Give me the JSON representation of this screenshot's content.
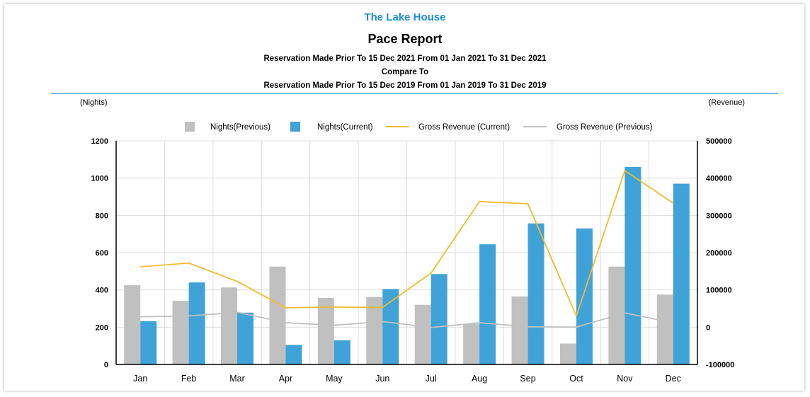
{
  "report": {
    "company": "The Lake House",
    "title": "Pace Report",
    "line1": "Reservation Made Prior To 15 Dec 2021 From 01 Jan 2021 To 31 Dec 2021",
    "line2": "Compare To",
    "line3": "Reservation Made Prior To 15 Dec 2019 From 01 Jan 2019 To 31 Dec 2019"
  },
  "chart_data": {
    "type": "bar",
    "categories": [
      "Jan",
      "Feb",
      "Mar",
      "Apr",
      "May",
      "Jun",
      "Jul",
      "Aug",
      "Sep",
      "Oct",
      "Nov",
      "Dec"
    ],
    "y_left": {
      "label": "(Nights)",
      "range": [
        0,
        1200
      ],
      "ticks": [
        "0",
        "200",
        "400",
        "600",
        "800",
        "1000",
        "1200"
      ]
    },
    "y_right": {
      "label": "(Revenue)",
      "range": [
        -100000,
        500000
      ],
      "ticks": [
        "-100000",
        "0",
        "100000",
        "200000",
        "300000",
        "400000",
        "500000"
      ]
    },
    "legend_position": "top",
    "grid": true,
    "series": [
      {
        "name": "Nights(Previous)",
        "type": "bar",
        "axis": "left",
        "color": "#c0c0c0",
        "values": [
          425,
          342,
          413,
          525,
          357,
          362,
          320,
          218,
          365,
          112,
          525,
          375
        ]
      },
      {
        "name": "Nights(Current)",
        "type": "bar",
        "axis": "left",
        "color": "#3fa3d8",
        "values": [
          232,
          440,
          278,
          105,
          130,
          405,
          485,
          645,
          757,
          730,
          1060,
          970
        ]
      },
      {
        "name": "Gross Revenue (Current)",
        "type": "line",
        "axis": "right",
        "color": "#f3bb2c",
        "values": [
          162000,
          172000,
          123000,
          52000,
          54000,
          53000,
          145000,
          337000,
          331000,
          30000,
          420000,
          333000
        ]
      },
      {
        "name": "Gross Revenue (Previous)",
        "type": "line",
        "axis": "right",
        "color": "#c0c0c0",
        "values": [
          28000,
          30000,
          40000,
          12000,
          5000,
          15000,
          -1000,
          12000,
          1000,
          0,
          38000,
          12000
        ]
      }
    ]
  }
}
